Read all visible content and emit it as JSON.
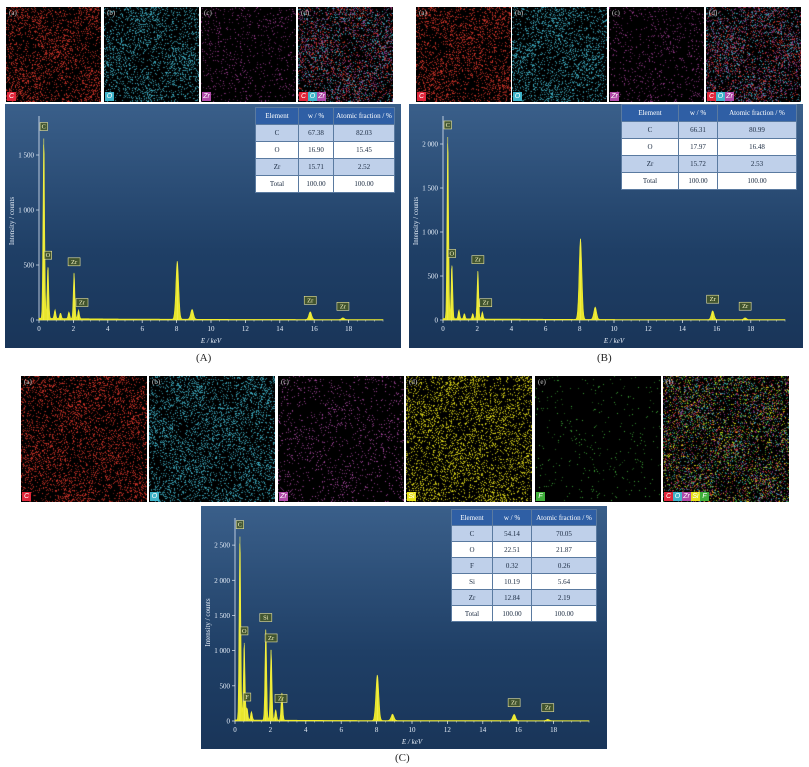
{
  "panel_labels": [
    "(A)",
    "(B)",
    "(C)"
  ],
  "element_colors": {
    "C": "#e0263a",
    "O": "#3fb3c9",
    "Zr": "#b04aa8",
    "Si": "#e8e21a",
    "F": "#3fae3a"
  },
  "maps": {
    "A": [
      {
        "caption": "(a)",
        "tags": [
          "C"
        ],
        "dot": "#d8352a"
      },
      {
        "caption": "(b)",
        "tags": [
          "O"
        ],
        "dot": "#3fb3c9"
      },
      {
        "caption": "(c)",
        "tags": [
          "Zr"
        ],
        "dot": "#9a3a8e"
      },
      {
        "caption": "(d)",
        "tags": [
          "C",
          "O",
          "Zr"
        ],
        "dot": "mix"
      }
    ],
    "B": [
      {
        "caption": "(a)",
        "tags": [
          "C"
        ],
        "dot": "#d8352a"
      },
      {
        "caption": "(b)",
        "tags": [
          "O"
        ],
        "dot": "#3fb3c9"
      },
      {
        "caption": "(c)",
        "tags": [
          "Zr"
        ],
        "dot": "#9a3a8e"
      },
      {
        "caption": "(d)",
        "tags": [
          "C",
          "O",
          "Zr"
        ],
        "dot": "mix"
      }
    ],
    "C": [
      {
        "caption": "(a)",
        "tags": [
          "C"
        ],
        "dot": "#d8352a"
      },
      {
        "caption": "(b)",
        "tags": [
          "O"
        ],
        "dot": "#3fb3c9"
      },
      {
        "caption": "(c)",
        "tags": [
          "Zr"
        ],
        "dot": "#b04aa8"
      },
      {
        "caption": "(d)",
        "tags": [
          "Si"
        ],
        "dot": "#e8e21a"
      },
      {
        "caption": "(e)",
        "tags": [
          "F"
        ],
        "dot": "#3fae3a"
      },
      {
        "caption": "(f)",
        "tags": [
          "C",
          "O",
          "Zr",
          "Si",
          "F"
        ],
        "dot": "mix"
      }
    ]
  },
  "chart_data": [
    {
      "type": "line",
      "panel": "(A)",
      "xlabel": "E / keV",
      "ylabel": "Intensity / counts",
      "xlim": [
        0,
        20
      ],
      "ylim": [
        0,
        1800
      ],
      "xticks": [
        0,
        2,
        4,
        6,
        8,
        10,
        12,
        14,
        16,
        18
      ],
      "yticks": [
        0,
        500,
        1000,
        1500
      ],
      "ytick_labels": [
        "0",
        "500",
        "1 000",
        "1 500"
      ],
      "peaks": [
        [
          0.28,
          1650
        ],
        [
          0.52,
          480
        ],
        [
          0.93,
          80
        ],
        [
          1.25,
          50
        ],
        [
          1.74,
          60
        ],
        [
          2.04,
          420
        ],
        [
          2.3,
          80
        ],
        [
          8.04,
          530
        ],
        [
          8.9,
          90
        ],
        [
          15.77,
          70
        ],
        [
          17.67,
          15
        ]
      ],
      "peak_labels": [
        {
          "text": "C",
          "x": 0.28,
          "y": 1650
        },
        {
          "text": "O",
          "x": 0.52,
          "y": 480
        },
        {
          "text": "Zr",
          "x": 2.04,
          "y": 420
        },
        {
          "text": "Zr",
          "x": 2.5,
          "y": 50
        },
        {
          "text": "Zr",
          "x": 15.77,
          "y": 70
        },
        {
          "text": "Zr",
          "x": 17.67,
          "y": 15
        }
      ],
      "table": {
        "headers": [
          "Element",
          "w / %",
          "Atomic fraction / %"
        ],
        "rows": [
          [
            "C",
            "67.38",
            "82.03"
          ],
          [
            "O",
            "16.90",
            "15.45"
          ],
          [
            "Zr",
            "15.71",
            "2.52"
          ],
          [
            "Total",
            "100.00",
            "100.00"
          ]
        ]
      }
    },
    {
      "type": "line",
      "panel": "(B)",
      "xlabel": "E / keV",
      "ylabel": "Intensity / counts",
      "xlim": [
        0,
        20
      ],
      "ylim": [
        0,
        2250
      ],
      "xticks": [
        0,
        2,
        4,
        6,
        8,
        10,
        12,
        14,
        16,
        18
      ],
      "yticks": [
        0,
        500,
        1000,
        1500,
        2000
      ],
      "ytick_labels": [
        "0",
        "500",
        "1 000",
        "1 500",
        "2 000"
      ],
      "peaks": [
        [
          0.28,
          2080
        ],
        [
          0.52,
          620
        ],
        [
          0.93,
          100
        ],
        [
          1.25,
          60
        ],
        [
          1.74,
          60
        ],
        [
          2.04,
          550
        ],
        [
          2.3,
          80
        ],
        [
          8.04,
          920
        ],
        [
          8.9,
          140
        ],
        [
          15.77,
          100
        ],
        [
          17.67,
          20
        ]
      ],
      "peak_labels": [
        {
          "text": "C",
          "x": 0.28,
          "y": 2080
        },
        {
          "text": "O",
          "x": 0.52,
          "y": 620
        },
        {
          "text": "Zr",
          "x": 2.04,
          "y": 550
        },
        {
          "text": "Zr",
          "x": 2.5,
          "y": 60
        },
        {
          "text": "Zr",
          "x": 15.77,
          "y": 100
        },
        {
          "text": "Zr",
          "x": 17.67,
          "y": 20
        }
      ],
      "table": {
        "headers": [
          "Element",
          "w / %",
          "Atomic fraction / %"
        ],
        "rows": [
          [
            "C",
            "66.31",
            "80.99"
          ],
          [
            "O",
            "17.97",
            "16.48"
          ],
          [
            "Zr",
            "15.72",
            "2.53"
          ],
          [
            "Total",
            "100.00",
            "100.00"
          ]
        ]
      }
    },
    {
      "type": "line",
      "panel": "(C)",
      "xlabel": "E / keV",
      "ylabel": "Intensity / counts",
      "xlim": [
        0,
        20
      ],
      "ylim": [
        0,
        2800
      ],
      "xticks": [
        0,
        2,
        4,
        6,
        8,
        10,
        12,
        14,
        16,
        18
      ],
      "yticks": [
        0,
        500,
        1000,
        1500,
        2000,
        2500
      ],
      "ytick_labels": [
        "0",
        "500",
        "1 000",
        "1 500",
        "2 000",
        "2 500"
      ],
      "peaks": [
        [
          0.28,
          2620
        ],
        [
          0.52,
          1110
        ],
        [
          0.68,
          170
        ],
        [
          0.93,
          120
        ],
        [
          1.74,
          1300
        ],
        [
          2.04,
          1010
        ],
        [
          2.3,
          150
        ],
        [
          2.65,
          400
        ],
        [
          8.04,
          650
        ],
        [
          8.9,
          90
        ],
        [
          15.77,
          90
        ],
        [
          17.67,
          20
        ]
      ],
      "peak_labels": [
        {
          "text": "C",
          "x": 0.28,
          "y": 2620
        },
        {
          "text": "O",
          "x": 0.52,
          "y": 1110
        },
        {
          "text": "F",
          "x": 0.68,
          "y": 170
        },
        {
          "text": "Si",
          "x": 1.74,
          "y": 1300
        },
        {
          "text": "Zr",
          "x": 2.04,
          "y": 1010
        },
        {
          "text": "Zr",
          "x": 2.6,
          "y": 150
        },
        {
          "text": "Zr",
          "x": 15.77,
          "y": 90
        },
        {
          "text": "Zr",
          "x": 17.67,
          "y": 20
        }
      ],
      "table": {
        "headers": [
          "Element",
          "w / %",
          "Atomic fraction / %"
        ],
        "rows": [
          [
            "C",
            "54.14",
            "70.05"
          ],
          [
            "O",
            "22.51",
            "21.87"
          ],
          [
            "F",
            "0.32",
            "0.26"
          ],
          [
            "Si",
            "10.19",
            "5.64"
          ],
          [
            "Zr",
            "12.84",
            "2.19"
          ],
          [
            "Total",
            "100.00",
            "100.00"
          ]
        ]
      }
    }
  ]
}
